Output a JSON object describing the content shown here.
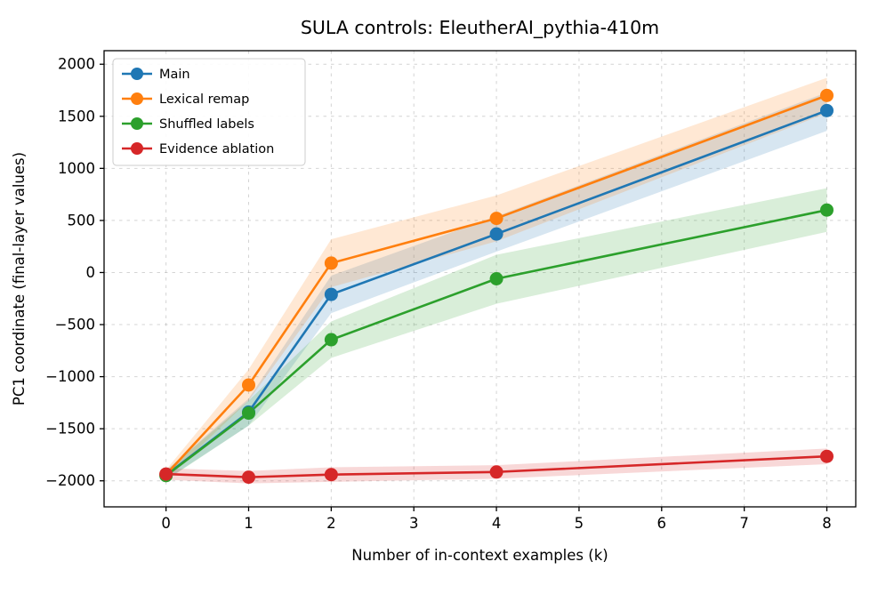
{
  "chart_data": {
    "type": "line",
    "title": "SULA controls: EleutherAI_pythia-410m",
    "xlabel": "Number of in-context examples (k)",
    "ylabel": "PC1 coordinate (final-layer values)",
    "x": [
      0,
      1,
      2,
      4,
      8
    ],
    "xticks": [
      0,
      1,
      2,
      3,
      4,
      5,
      6,
      7,
      8
    ],
    "yticks": [
      -2000,
      -1500,
      -1000,
      -500,
      0,
      500,
      1000,
      1500,
      2000
    ],
    "xlim": [
      -0.75,
      8.35
    ],
    "ylim": [
      -2250,
      2130
    ],
    "grid": true,
    "legend_position": "upper left",
    "series": [
      {
        "name": "Main",
        "color": "#1f77b4",
        "values": [
          -1945,
          -1340,
          -210,
          370,
          1555
        ],
        "band_lower": [
          -1990,
          -1470,
          -390,
          200,
          1360
        ],
        "band_upper": [
          -1900,
          -1210,
          -30,
          540,
          1730
        ]
      },
      {
        "name": "Lexical remap",
        "color": "#ff7f0e",
        "values": [
          -1940,
          -1080,
          90,
          520,
          1700
        ],
        "band_lower": [
          -1985,
          -1230,
          -140,
          300,
          1530
        ],
        "band_upper": [
          -1895,
          -930,
          320,
          740,
          1870
        ]
      },
      {
        "name": "Shuffled labels",
        "color": "#2ca02c",
        "values": [
          -1950,
          -1350,
          -645,
          -60,
          600
        ],
        "band_lower": [
          -1995,
          -1470,
          -820,
          -300,
          390
        ],
        "band_upper": [
          -1905,
          -1230,
          -470,
          170,
          810
        ]
      },
      {
        "name": "Evidence ablation",
        "color": "#d62728",
        "values": [
          -1935,
          -1965,
          -1940,
          -1915,
          -1765
        ],
        "band_lower": [
          -1990,
          -2025,
          -2010,
          -1980,
          -1840
        ],
        "band_upper": [
          -1880,
          -1905,
          -1870,
          -1850,
          -1690
        ]
      }
    ]
  }
}
